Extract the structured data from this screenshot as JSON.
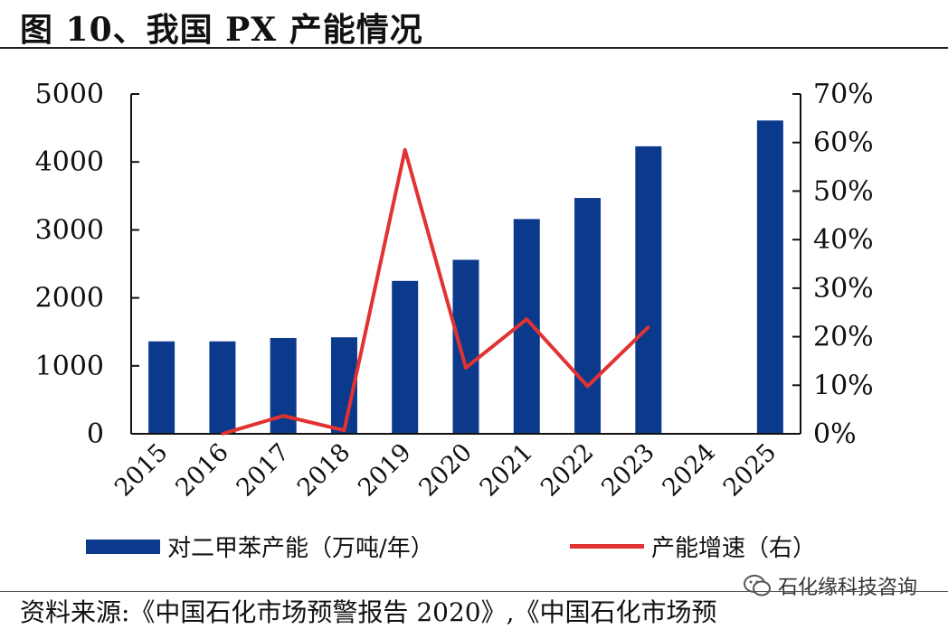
{
  "figure": {
    "title": "图 10、我国 PX 产能情况",
    "source": "资料来源:《中国石化市场预警报告 2020》,《中国石化市场预",
    "watermark": "石化缘科技咨询"
  },
  "chart_data": {
    "type": "bar",
    "categories": [
      "2015",
      "2016",
      "2017",
      "2018",
      "2019",
      "2020",
      "2021",
      "2022",
      "2023",
      "2024",
      "2025"
    ],
    "series": [
      {
        "name": "对二甲苯产能（万吨/年）",
        "type": "bar",
        "axis": "left",
        "color": "#0b3a8c",
        "values": [
          1360,
          1360,
          1410,
          1420,
          2250,
          2560,
          3160,
          3470,
          4230,
          null,
          4610
        ]
      },
      {
        "name": "产能增速（右）",
        "type": "line",
        "axis": "right",
        "color": "#e23232",
        "values": [
          null,
          0.0,
          3.7,
          0.7,
          58.5,
          13.6,
          23.6,
          9.8,
          22.0,
          null,
          null
        ]
      }
    ],
    "yaxis_left": {
      "min": 0,
      "max": 5000,
      "ticks": [
        "0",
        "1000",
        "2000",
        "3000",
        "4000",
        "5000"
      ]
    },
    "yaxis_right": {
      "min": 0,
      "max": 70,
      "ticks": [
        "0%",
        "10%",
        "20%",
        "30%",
        "40%",
        "50%",
        "60%",
        "70%"
      ]
    },
    "legend_position": "bottom",
    "grid": false
  }
}
